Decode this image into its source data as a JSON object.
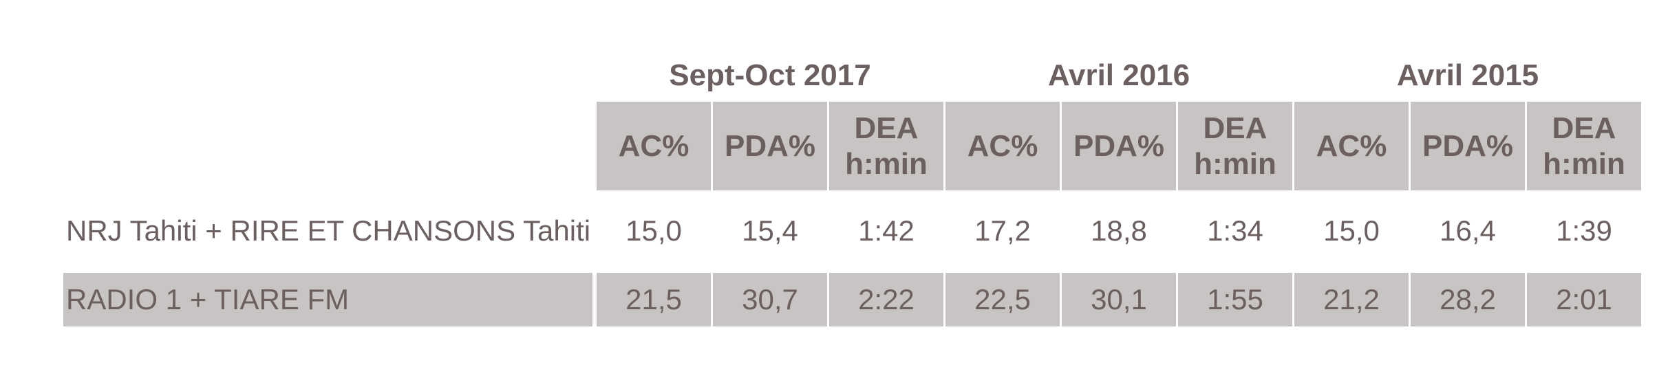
{
  "table": {
    "groups": [
      "Sept-Oct 2017",
      "Avril 2016",
      "Avril 2015"
    ],
    "columns": [
      [
        "AC%",
        "PDA%",
        "DEA\nh:min"
      ],
      [
        "AC%",
        "PDA%",
        "DEA\nh:min"
      ],
      [
        "AC%",
        "PDA%",
        "DEA\nh:min"
      ]
    ],
    "rows": [
      {
        "label": "NRJ Tahiti + RIRE ET CHANSONS Tahiti",
        "values": [
          "15,0",
          "15,4",
          "1:42",
          "17,2",
          "18,8",
          "1:34",
          "15,0",
          "16,4",
          "1:39"
        ]
      },
      {
        "label": "RADIO 1 + TIARE FM",
        "values": [
          "21,5",
          "30,7",
          "2:22",
          "22,5",
          "30,1",
          "1:55",
          "21,2",
          "28,2",
          "2:01"
        ]
      }
    ]
  }
}
